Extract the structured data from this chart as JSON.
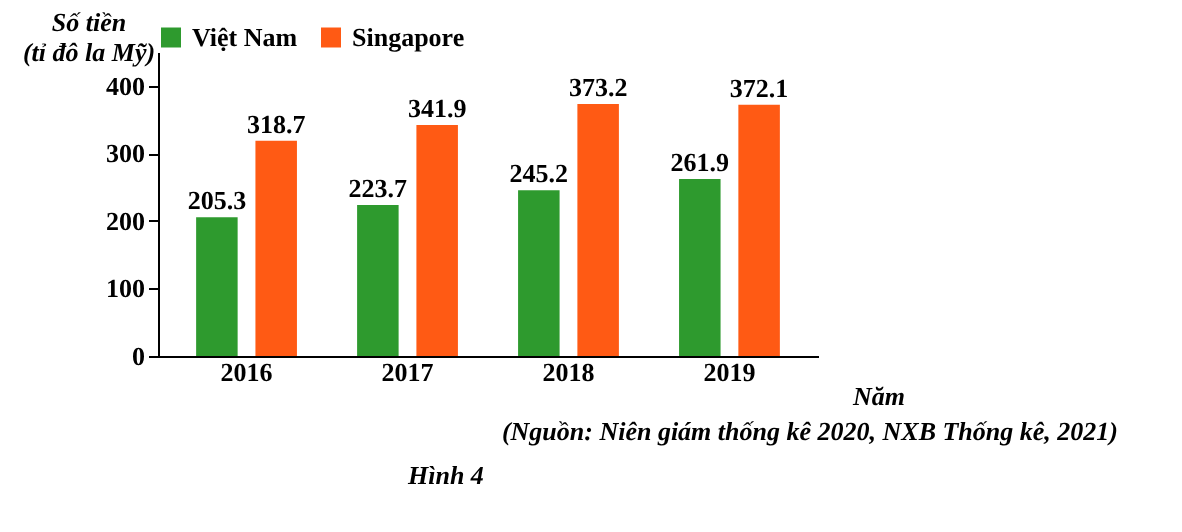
{
  "chart_data": {
    "type": "bar",
    "ylabel": "Số tiền\n(tỉ đô la Mỹ)",
    "xlabel": "Năm",
    "categories": [
      "2016",
      "2017",
      "2018",
      "2019"
    ],
    "series": [
      {
        "name": "Việt Nam",
        "color": "#2e9a2e",
        "values": [
          205.3,
          223.7,
          245.2,
          261.9
        ]
      },
      {
        "name": "Singapore",
        "color": "#ff5a14",
        "values": [
          318.7,
          341.9,
          373.2,
          372.1
        ]
      }
    ],
    "ylim": [
      0,
      450
    ],
    "yticks": [
      0,
      100,
      200,
      300,
      400
    ],
    "data_labels": true,
    "legend": "top",
    "grid": false,
    "annotations": [
      "(Nguồn: Niên giám thống kê 2020, NXB Thống kê, 2021)",
      "Hình 4"
    ]
  }
}
